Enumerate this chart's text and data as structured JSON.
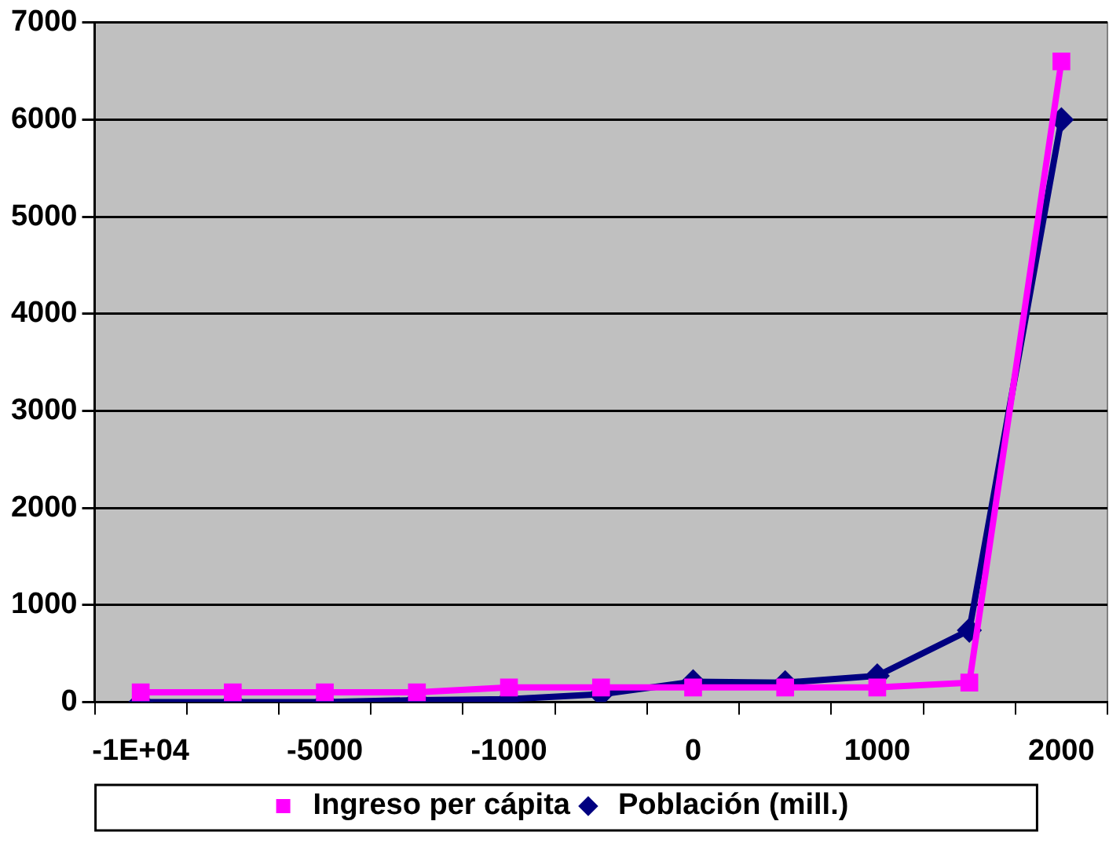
{
  "chart_data": {
    "type": "line",
    "categories": [
      "-1E+04",
      null,
      "-5000",
      null,
      "-1000",
      null,
      "0",
      null,
      "1000",
      null,
      "2000"
    ],
    "series": [
      {
        "name": "Población (mill.)",
        "color": "#000080",
        "marker": "diamond",
        "values": [
          0,
          0,
          0,
          20,
          30,
          80,
          210,
          200,
          270,
          740,
          6000
        ]
      },
      {
        "name": "Ingreso per cápita",
        "color": "#ff00ff",
        "marker": "square",
        "values": [
          100,
          100,
          100,
          100,
          150,
          150,
          150,
          150,
          150,
          200,
          6600
        ]
      }
    ],
    "ylim": [
      0,
      7000
    ],
    "yticks": [
      0,
      1000,
      2000,
      3000,
      4000,
      5000,
      6000,
      7000
    ],
    "grid": "y",
    "legend": "bottom"
  }
}
